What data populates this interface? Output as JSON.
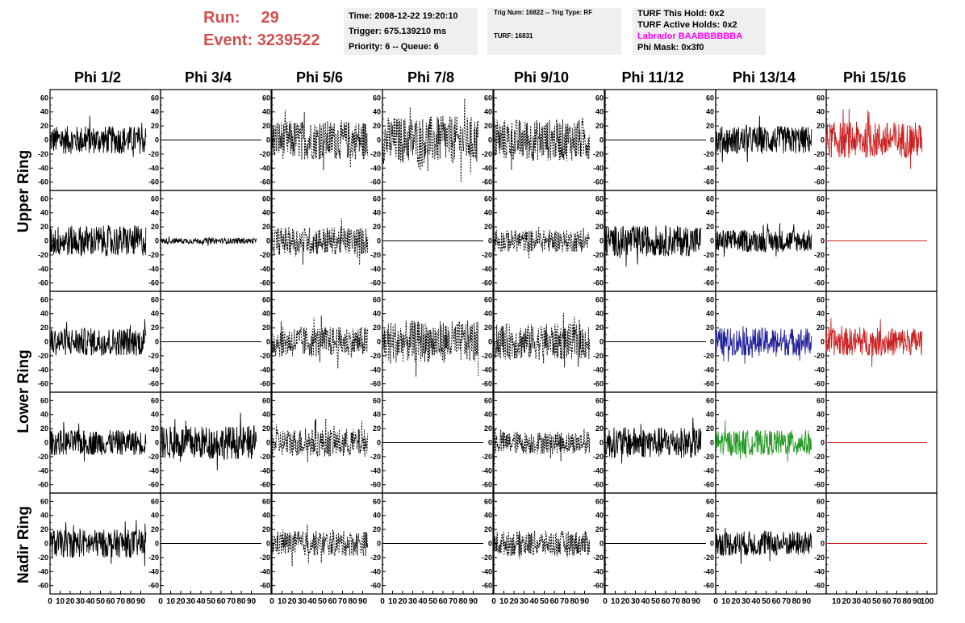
{
  "header": {
    "run_label": "Run:",
    "run_value": "29",
    "event_label": "Event:",
    "event_value": "3239522",
    "color": "#d05050"
  },
  "info_panel_1": {
    "time": "Time: 2008-12-22 19:20:10",
    "trigger": "Trigger: 675.139210 ms",
    "priority": "Priority: 6 -- Queue: 6"
  },
  "info_panel_2": {
    "trig": "Trig Num: 16822 -- Trig Type: RF",
    "turf": "TURF: 16831"
  },
  "info_panel_3": {
    "hold": "TURF This Hold: 0x2",
    "active": "TURF Active Holds: 0x2",
    "labrador": "Labrador BAABBBBBBA",
    "labrador_color": "#ff00ff",
    "phimask": "Phi Mask: 0x3f0"
  },
  "columns": [
    "Phi 1/2",
    "Phi 3/4",
    "Phi 5/6",
    "Phi 7/8",
    "Phi 9/10",
    "Phi 11/12",
    "Phi 13/14",
    "Phi 15/16"
  ],
  "ring_labels": {
    "upper": "Upper Ring",
    "lower": "Lower Ring",
    "nadir": "Nadir Ring"
  },
  "chart_data": {
    "type": "line",
    "xlim": [
      0,
      100
    ],
    "ylim": [
      -65,
      65
    ],
    "y_ticks": [
      -60,
      -40,
      -20,
      0,
      20,
      40,
      60
    ],
    "x_ticks_first": [
      0,
      10,
      20,
      30,
      40,
      50,
      60,
      70,
      80,
      90
    ],
    "x_ticks_last": [
      10,
      20,
      30,
      40,
      50,
      60,
      70,
      80,
      90,
      100
    ],
    "grid": false,
    "style_colors": {
      "black": "#000000",
      "red": "#cc2222",
      "blue": "#22229a",
      "green": "#229922"
    },
    "rows": [
      [
        {
          "style": "solid",
          "color": "black",
          "amp": 20,
          "flat": false
        },
        {
          "style": "solid",
          "color": "black",
          "amp": 0,
          "flat": true
        },
        {
          "style": "dashed",
          "color": "black",
          "amp": 28,
          "flat": false
        },
        {
          "style": "dashed",
          "color": "black",
          "amp": 34,
          "flat": false
        },
        {
          "style": "dashed",
          "color": "black",
          "amp": 30,
          "flat": false
        },
        {
          "style": "solid",
          "color": "black",
          "amp": 0,
          "flat": true
        },
        {
          "style": "solid",
          "color": "black",
          "amp": 20,
          "flat": false
        },
        {
          "style": "solid",
          "color": "red",
          "amp": 26,
          "flat": false
        }
      ],
      [
        {
          "style": "solid",
          "color": "black",
          "amp": 22,
          "flat": false
        },
        {
          "style": "solid",
          "color": "black",
          "amp": 4,
          "flat": false
        },
        {
          "style": "dashed",
          "color": "black",
          "amp": 20,
          "flat": false
        },
        {
          "style": "solid",
          "color": "black",
          "amp": 0,
          "flat": true
        },
        {
          "style": "dashed",
          "color": "black",
          "amp": 16,
          "flat": false
        },
        {
          "style": "solid",
          "color": "black",
          "amp": 22,
          "flat": false
        },
        {
          "style": "solid",
          "color": "black",
          "amp": 16,
          "flat": false
        },
        {
          "style": "solid",
          "color": "red",
          "amp": 0,
          "flat": true
        }
      ],
      [
        {
          "style": "solid",
          "color": "black",
          "amp": 20,
          "flat": false
        },
        {
          "style": "solid",
          "color": "black",
          "amp": 0,
          "flat": true
        },
        {
          "style": "dashed",
          "color": "black",
          "amp": 22,
          "flat": false
        },
        {
          "style": "dashed",
          "color": "black",
          "amp": 30,
          "flat": false
        },
        {
          "style": "dashed",
          "color": "black",
          "amp": 26,
          "flat": false
        },
        {
          "style": "solid",
          "color": "black",
          "amp": 0,
          "flat": true
        },
        {
          "style": "solid",
          "color": "blue",
          "amp": 20,
          "flat": false
        },
        {
          "style": "solid",
          "color": "red",
          "amp": 20,
          "flat": false
        }
      ],
      [
        {
          "style": "solid",
          "color": "black",
          "amp": 18,
          "flat": false
        },
        {
          "style": "solid",
          "color": "black",
          "amp": 24,
          "flat": false
        },
        {
          "style": "dashed",
          "color": "black",
          "amp": 20,
          "flat": false
        },
        {
          "style": "solid",
          "color": "black",
          "amp": 0,
          "flat": true
        },
        {
          "style": "dashed",
          "color": "black",
          "amp": 16,
          "flat": false
        },
        {
          "style": "solid",
          "color": "black",
          "amp": 22,
          "flat": false
        },
        {
          "style": "solid",
          "color": "green",
          "amp": 18,
          "flat": false
        },
        {
          "style": "solid",
          "color": "red",
          "amp": 0,
          "flat": true
        }
      ],
      [
        {
          "style": "solid",
          "color": "black",
          "amp": 20,
          "flat": false
        },
        {
          "style": "solid",
          "color": "black",
          "amp": 0,
          "flat": true
        },
        {
          "style": "dashed",
          "color": "black",
          "amp": 18,
          "flat": false
        },
        {
          "style": "solid",
          "color": "black",
          "amp": 0,
          "flat": true
        },
        {
          "style": "dashed",
          "color": "black",
          "amp": 18,
          "flat": false
        },
        {
          "style": "solid",
          "color": "black",
          "amp": 0,
          "flat": true
        },
        {
          "style": "solid",
          "color": "black",
          "amp": 18,
          "flat": false
        },
        {
          "style": "solid",
          "color": "red",
          "amp": 0,
          "flat": true
        }
      ]
    ]
  }
}
